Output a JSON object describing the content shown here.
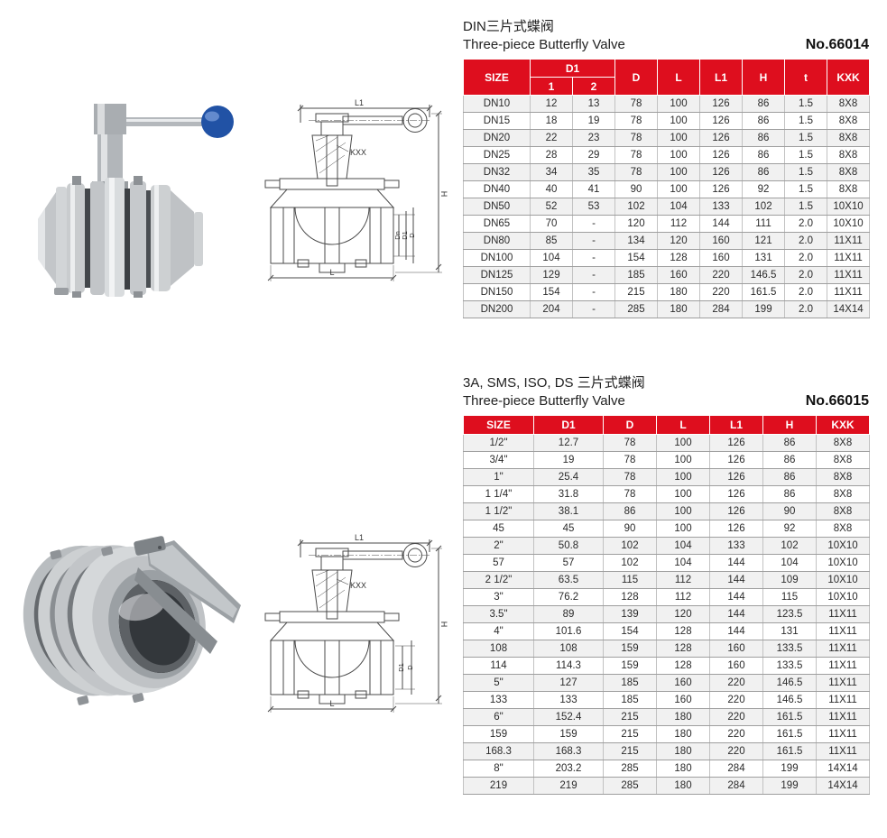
{
  "colors": {
    "accent_red": "#de0e1e",
    "knob_blue": "#2152a5",
    "steel_light": "#d8dadc",
    "steel_mid": "#b6babd",
    "steel_dark": "#7d8287"
  },
  "section_din": {
    "title_zh": "DIN三片式蝶阀",
    "title_en": "Three-piece Butterfly Valve",
    "number": "No.66014",
    "table": {
      "col_size": "SIZE",
      "col_d1_group": "D1",
      "col_d1_sub1": "1",
      "col_d1_sub2": "2",
      "col_d": "D",
      "col_l": "L",
      "col_l1": "L1",
      "col_h": "H",
      "col_t": "t",
      "col_kxk": "KXK",
      "rows": [
        [
          "DN10",
          "12",
          "13",
          "78",
          "100",
          "126",
          "86",
          "1.5",
          "8X8"
        ],
        [
          "DN15",
          "18",
          "19",
          "78",
          "100",
          "126",
          "86",
          "1.5",
          "8X8"
        ],
        [
          "DN20",
          "22",
          "23",
          "78",
          "100",
          "126",
          "86",
          "1.5",
          "8X8"
        ],
        [
          "DN25",
          "28",
          "29",
          "78",
          "100",
          "126",
          "86",
          "1.5",
          "8X8"
        ],
        [
          "DN32",
          "34",
          "35",
          "78",
          "100",
          "126",
          "86",
          "1.5",
          "8X8"
        ],
        [
          "DN40",
          "40",
          "41",
          "90",
          "100",
          "126",
          "92",
          "1.5",
          "8X8"
        ],
        [
          "DN50",
          "52",
          "53",
          "102",
          "104",
          "133",
          "102",
          "1.5",
          "10X10"
        ],
        [
          "DN65",
          "70",
          "-",
          "120",
          "112",
          "144",
          "111",
          "2.0",
          "10X10"
        ],
        [
          "DN80",
          "85",
          "-",
          "134",
          "120",
          "160",
          "121",
          "2.0",
          "11X11"
        ],
        [
          "DN100",
          "104",
          "-",
          "154",
          "128",
          "160",
          "131",
          "2.0",
          "11X11"
        ],
        [
          "DN125",
          "129",
          "-",
          "185",
          "160",
          "220",
          "146.5",
          "2.0",
          "11X11"
        ],
        [
          "DN150",
          "154",
          "-",
          "215",
          "180",
          "220",
          "161.5",
          "2.0",
          "11X11"
        ],
        [
          "DN200",
          "204",
          "-",
          "285",
          "180",
          "284",
          "199",
          "2.0",
          "14X14"
        ]
      ]
    }
  },
  "section_sms": {
    "title_zh": "3A, SMS, ISO, DS 三片式蝶阀",
    "title_en": "Three-piece Butterfly Valve",
    "number": "No.66015",
    "table": {
      "col_size": "SIZE",
      "col_d1": "D1",
      "col_d": "D",
      "col_l": "L",
      "col_l1": "L1",
      "col_h": "H",
      "col_kxk": "KXK",
      "rows": [
        [
          "1/2\"",
          "12.7",
          "78",
          "100",
          "126",
          "86",
          "8X8"
        ],
        [
          "3/4\"",
          "19",
          "78",
          "100",
          "126",
          "86",
          "8X8"
        ],
        [
          "1\"",
          "25.4",
          "78",
          "100",
          "126",
          "86",
          "8X8"
        ],
        [
          "1 1/4\"",
          "31.8",
          "78",
          "100",
          "126",
          "86",
          "8X8"
        ],
        [
          "1 1/2\"",
          "38.1",
          "86",
          "100",
          "126",
          "90",
          "8X8"
        ],
        [
          "45",
          "45",
          "90",
          "100",
          "126",
          "92",
          "8X8"
        ],
        [
          "2\"",
          "50.8",
          "102",
          "104",
          "133",
          "102",
          "10X10"
        ],
        [
          "57",
          "57",
          "102",
          "104",
          "144",
          "104",
          "10X10"
        ],
        [
          "2 1/2\"",
          "63.5",
          "115",
          "112",
          "144",
          "109",
          "10X10"
        ],
        [
          "3\"",
          "76.2",
          "128",
          "112",
          "144",
          "115",
          "10X10"
        ],
        [
          "3.5\"",
          "89",
          "139",
          "120",
          "144",
          "123.5",
          "11X11"
        ],
        [
          "4\"",
          "101.6",
          "154",
          "128",
          "144",
          "131",
          "11X11"
        ],
        [
          "108",
          "108",
          "159",
          "128",
          "160",
          "133.5",
          "11X11"
        ],
        [
          "114",
          "114.3",
          "159",
          "128",
          "160",
          "133.5",
          "11X11"
        ],
        [
          "5\"",
          "127",
          "185",
          "160",
          "220",
          "146.5",
          "11X11"
        ],
        [
          "133",
          "133",
          "185",
          "160",
          "220",
          "146.5",
          "11X11"
        ],
        [
          "6\"",
          "152.4",
          "215",
          "180",
          "220",
          "161.5",
          "11X11"
        ],
        [
          "159",
          "159",
          "215",
          "180",
          "220",
          "161.5",
          "11X11"
        ],
        [
          "168.3",
          "168.3",
          "215",
          "180",
          "220",
          "161.5",
          "11X11"
        ],
        [
          "8\"",
          "203.2",
          "285",
          "180",
          "284",
          "199",
          "14X14"
        ],
        [
          "219",
          "219",
          "285",
          "180",
          "284",
          "199",
          "14X14"
        ]
      ]
    }
  },
  "drawing_din": {
    "labels": {
      "l1": "L1",
      "kxx": "KXX",
      "h": "H",
      "dn": "Dn",
      "d1": "D1",
      "d": "D",
      "l": "L"
    }
  },
  "drawing_sms": {
    "labels": {
      "l1": "L1",
      "kxx": "KXX",
      "h": "H",
      "d1": "D1",
      "d": "D",
      "l": "L"
    }
  }
}
